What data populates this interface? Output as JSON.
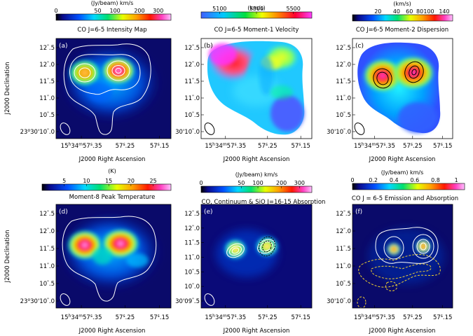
{
  "ylabel": "J2000 Declination",
  "panels": [
    {
      "id": "a",
      "cbar_unit": "(Jy/beam) km/s",
      "cbar_ticks": [
        "0",
        "50",
        "100",
        "200",
        "300"
      ],
      "cbar_tick_vals": [
        0,
        50,
        100,
        200,
        300
      ],
      "cbar_range": [
        0,
        380
      ],
      "cbar_scale": "sqrt",
      "title": "CO J=6-5 Intensity Map",
      "panel_label": "(a)",
      "map": "intensity",
      "contours": "white",
      "xlabel": "J2000 Right Ascension",
      "xticks": [
        {
          "pre": "15",
          "sup1": "h",
          "mid": "34",
          "sup2": "m",
          "post": "57",
          "sup3": "s",
          "end": ".35"
        },
        {
          "pre": "57",
          "sup3": "s",
          "end": ".25"
        },
        {
          "pre": "57",
          "sup3": "s",
          "end": ".15"
        }
      ],
      "yticks": [
        {
          "pre": "12",
          "sup": "\"",
          "end": ".5"
        },
        {
          "pre": "12",
          "sup": "\"",
          "end": ".0"
        },
        {
          "pre": "11",
          "sup": "\"",
          "end": ".5"
        },
        {
          "pre": "11",
          "sup": "\"",
          "end": ".0"
        },
        {
          "pre": "10",
          "sup": "\"",
          "end": ".5"
        },
        {
          "pre": "23",
          "sup": "o",
          "mid": "30'10",
          "sup2": "\"",
          "end": ".0"
        }
      ]
    },
    {
      "id": "b",
      "cbar_unit": "(km/s)",
      "cbar_ticks": [
        "5100",
        "5300",
        "5500"
      ],
      "cbar_tick_vals": [
        5100,
        5300,
        5500
      ],
      "cbar_range": [
        5000,
        5600
      ],
      "cbar_scale": "linear",
      "title": "CO J=6-5 Moment-1 Velocity",
      "panel_label": "(b)",
      "map": "velocity",
      "xlabel": "J2000 Right Ascension",
      "xticks": [
        {
          "pre": "15",
          "sup1": "h",
          "mid": "34",
          "sup2": "m",
          "post": "57",
          "sup3": "s",
          "end": ".35"
        },
        {
          "pre": "57",
          "sup3": "s",
          "end": ".25"
        },
        {
          "pre": "57",
          "sup3": "s",
          "end": ".15"
        }
      ],
      "yticks": [
        {
          "pre": "12",
          "sup": "\"",
          "end": ".5"
        },
        {
          "pre": "12",
          "sup": "\"",
          "end": ".0"
        },
        {
          "pre": "11",
          "sup": "\"",
          "end": ".5"
        },
        {
          "pre": "11",
          "sup": "\"",
          "end": ".0"
        },
        {
          "pre": "10",
          "sup": "\"",
          "end": ".5"
        },
        {
          "pre": "30'10",
          "sup": "\"",
          "end": ".0"
        }
      ]
    },
    {
      "id": "c",
      "cbar_unit": "(km/s)",
      "cbar_ticks": [
        "20",
        "40",
        "60",
        "80",
        "100",
        "140"
      ],
      "cbar_tick_vals": [
        20,
        40,
        60,
        80,
        100,
        140
      ],
      "cbar_range": [
        10,
        165
      ],
      "cbar_scale": "sqrt",
      "title": "CO J=6-5 Moment-2 Dispersion",
      "panel_label": "(c)",
      "map": "dispersion",
      "contours": "black",
      "xlabel": "J2000 Right Ascension",
      "xticks": [
        {
          "pre": "15",
          "sup1": "h",
          "mid": "34",
          "sup2": "m",
          "post": "57",
          "sup3": "s",
          "end": ".35"
        },
        {
          "pre": "57",
          "sup3": "s",
          "end": ".25"
        },
        {
          "pre": "57",
          "sup3": "s",
          "end": ".15"
        }
      ],
      "yticks": [
        {
          "pre": "12",
          "sup": "\"",
          "end": ".5"
        },
        {
          "pre": "12",
          "sup": "\"",
          "end": ".0"
        },
        {
          "pre": "11",
          "sup": "\"",
          "end": ".5"
        },
        {
          "pre": "11",
          "sup": "\"",
          "end": ".0"
        },
        {
          "pre": "10",
          "sup": "\"",
          "end": ".5"
        },
        {
          "pre": "30'10",
          "sup": "\"",
          "end": ".0"
        }
      ]
    },
    {
      "id": "d",
      "cbar_unit": "(K)",
      "cbar_ticks": [
        "5",
        "10",
        "15",
        "20",
        "25"
      ],
      "cbar_tick_vals": [
        5,
        10,
        15,
        20,
        25
      ],
      "cbar_range": [
        0,
        29
      ],
      "cbar_scale": "linear",
      "title": "Moment-8 Peak Temperature",
      "panel_label": "(d)",
      "map": "peak",
      "contours": "white1",
      "xlabel": "J2000 Right Ascension",
      "xticks": [
        {
          "pre": "15",
          "sup1": "h",
          "mid": "34",
          "sup2": "m",
          "post": "57",
          "sup3": "s",
          "end": ".35"
        },
        {
          "pre": "57",
          "sup3": "s",
          "end": ".25"
        },
        {
          "pre": "57",
          "sup3": "s",
          "end": ".15"
        }
      ],
      "yticks": [
        {
          "pre": "12",
          "sup": "\"",
          "end": ".5"
        },
        {
          "pre": "12",
          "sup": "\"",
          "end": ".0"
        },
        {
          "pre": "11",
          "sup": "\"",
          "end": ".5"
        },
        {
          "pre": "11",
          "sup": "\"",
          "end": ".0"
        },
        {
          "pre": "10",
          "sup": "\"",
          "end": ".5"
        },
        {
          "pre": "23",
          "sup": "o",
          "mid": "30'10",
          "sup2": "\"",
          "end": ".0"
        }
      ]
    },
    {
      "id": "e",
      "cbar_unit": "(Jy/beam) km/s",
      "cbar_ticks": [
        "0",
        "50",
        "100",
        "200",
        "300"
      ],
      "cbar_tick_vals": [
        0,
        50,
        100,
        200,
        300
      ],
      "cbar_range": [
        0,
        380
      ],
      "cbar_scale": "sqrt",
      "title": "CO, Continuum & SiO J=16-15 Absorption",
      "panel_label": "(e)",
      "map": "continuum",
      "contours": "e",
      "xlabel": "J2000 Right Ascension",
      "xticks": [
        {
          "pre": "15",
          "sup1": "h",
          "mid": "34",
          "sup2": "m",
          "post": "57",
          "sup3": "s",
          "end": ".35"
        },
        {
          "pre": "57",
          "sup3": "s",
          "end": ".25"
        },
        {
          "pre": "57",
          "sup3": "s",
          "end": ".15"
        }
      ],
      "yticks": [
        {
          "pre": "12",
          "sup": "\"",
          "end": ".5"
        },
        {
          "pre": "12",
          "sup": "\"",
          "end": ".0"
        },
        {
          "pre": "11",
          "sup": "\"",
          "end": ".5"
        },
        {
          "pre": "11",
          "sup": "\"",
          "end": ".0"
        },
        {
          "pre": "10",
          "sup": "\"",
          "end": ".5"
        },
        {
          "pre": "10",
          "sup": "\"",
          "end": ".0"
        },
        {
          "pre": "30'09",
          "sup": "\"",
          "end": ".5"
        }
      ]
    },
    {
      "id": "f",
      "cbar_unit": "(Jy/beam) km/s",
      "cbar_ticks": [
        "0",
        "0.2",
        "0.4",
        "0.6",
        "0.8",
        "1"
      ],
      "cbar_tick_vals": [
        0,
        0.2,
        0.4,
        0.6,
        0.8,
        1
      ],
      "cbar_range": [
        0,
        1.08
      ],
      "cbar_scale": "linear",
      "title": "CO J = 6-5 Emission and Absorption",
      "panel_label": "(f)",
      "map": "emission",
      "contours": "f",
      "xlabel": "J2000 Right Ascension",
      "xticks": [
        {
          "pre": "15",
          "sup1": "h",
          "mid": "34",
          "sup2": "m",
          "post": "57",
          "sup3": "s",
          "end": ".35"
        },
        {
          "pre": "57",
          "sup3": "s",
          "end": ".25"
        },
        {
          "pre": "57",
          "sup3": "s",
          "end": ".15"
        }
      ],
      "yticks": [
        {
          "pre": "12",
          "sup": "\"",
          "end": ".5"
        },
        {
          "pre": "12",
          "sup": "\"",
          "end": ".0"
        },
        {
          "pre": "11",
          "sup": "\"",
          "end": ".5"
        },
        {
          "pre": "11",
          "sup": "\"",
          "end": ".0"
        },
        {
          "pre": "10",
          "sup": "\"",
          "end": ".5"
        },
        {
          "pre": "30'10",
          "sup": "\"",
          "end": ".0"
        }
      ]
    }
  ],
  "chart_data": [
    {
      "type": "heatmap",
      "panel": "a",
      "title": "CO J=6-5 Intensity Map",
      "xlabel": "J2000 Right Ascension",
      "ylabel": "J2000 Declination",
      "colorbar_label": "(Jy/beam) km/s",
      "colorbar_ticks": [
        0,
        50,
        100,
        200,
        300
      ]
    },
    {
      "type": "heatmap",
      "panel": "b",
      "title": "CO J=6-5 Moment-1 Velocity",
      "xlabel": "J2000 Right Ascension",
      "colorbar_label": "(km/s)",
      "colorbar_ticks": [
        5100,
        5300,
        5500
      ]
    },
    {
      "type": "heatmap",
      "panel": "c",
      "title": "CO J=6-5 Moment-2 Dispersion",
      "xlabel": "J2000 Right Ascension",
      "colorbar_label": "(km/s)",
      "colorbar_ticks": [
        20,
        40,
        60,
        80,
        100,
        140
      ]
    },
    {
      "type": "heatmap",
      "panel": "d",
      "title": "Moment-8 Peak Temperature",
      "xlabel": "J2000 Right Ascension",
      "ylabel": "J2000 Declination",
      "colorbar_label": "(K)",
      "colorbar_ticks": [
        5,
        10,
        15,
        20,
        25
      ]
    },
    {
      "type": "heatmap",
      "panel": "e",
      "title": "CO, Continuum & SiO J=16-15 Absorption",
      "xlabel": "J2000 Right Ascension",
      "colorbar_label": "(Jy/beam) km/s",
      "colorbar_ticks": [
        0,
        50,
        100,
        200,
        300
      ]
    },
    {
      "type": "heatmap",
      "panel": "f",
      "title": "CO J = 6-5 Emission and Absorption",
      "xlabel": "J2000 Right Ascension",
      "colorbar_label": "(Jy/beam) km/s",
      "colorbar_ticks": [
        0,
        0.2,
        0.4,
        0.6,
        0.8,
        1
      ]
    }
  ]
}
